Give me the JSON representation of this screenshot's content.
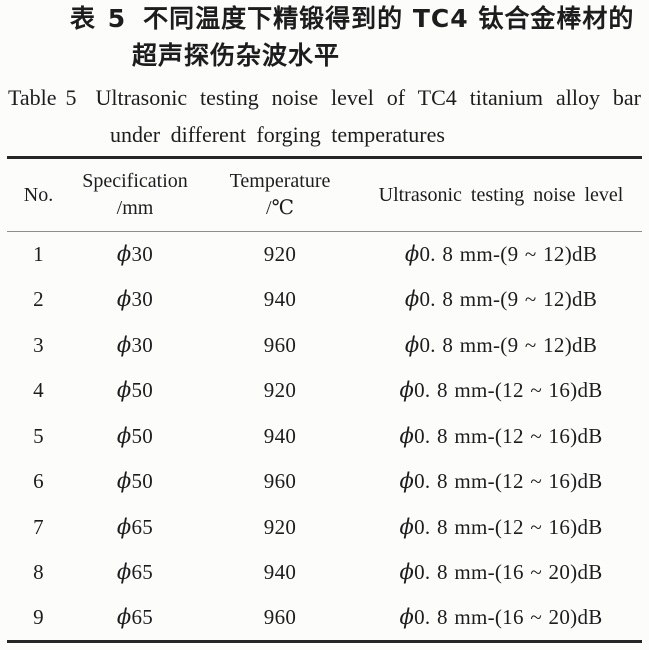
{
  "page": {
    "background": "#fcfcfb",
    "text_color": "#1d1d1d",
    "rule_color": "#262626",
    "header_rule_color": "#8e8e8e"
  },
  "caption": {
    "zh_label": "表 5",
    "zh_title_line1": "不同温度下精锻得到的 TC4 钛合金棒材的",
    "zh_title_line2": "超声探伤杂波水平",
    "en_label": "Table 5",
    "en_title_line1": "Ultrasonic testing noise level of TC4 titanium alloy bar",
    "en_title_line2": "under different forging temperatures"
  },
  "table": {
    "header": {
      "col_no": "No.",
      "col_spec_line1": "Specification",
      "col_spec_line2": "/mm",
      "col_temp_line1": "Temperature",
      "col_temp_line2": "/℃",
      "col_noise": "Ultrasonic testing noise level"
    },
    "rows": [
      {
        "no": "1",
        "specification": "ϕ30",
        "temperature": "920",
        "noise_level": "ϕ0. 8 mm-(9 ~ 12)dB"
      },
      {
        "no": "2",
        "specification": "ϕ30",
        "temperature": "940",
        "noise_level": "ϕ0. 8 mm-(9 ~ 12)dB"
      },
      {
        "no": "3",
        "specification": "ϕ30",
        "temperature": "960",
        "noise_level": "ϕ0. 8 mm-(9 ~ 12)dB"
      },
      {
        "no": "4",
        "specification": "ϕ50",
        "temperature": "920",
        "noise_level": "ϕ0. 8 mm-(12 ~ 16)dB"
      },
      {
        "no": "5",
        "specification": "ϕ50",
        "temperature": "940",
        "noise_level": "ϕ0. 8 mm-(12 ~ 16)dB"
      },
      {
        "no": "6",
        "specification": "ϕ50",
        "temperature": "960",
        "noise_level": "ϕ0. 8 mm-(12 ~ 16)dB"
      },
      {
        "no": "7",
        "specification": "ϕ65",
        "temperature": "920",
        "noise_level": "ϕ0. 8 mm-(12 ~ 16)dB"
      },
      {
        "no": "8",
        "specification": "ϕ65",
        "temperature": "940",
        "noise_level": "ϕ0. 8 mm-(16 ~ 20)dB"
      },
      {
        "no": "9",
        "specification": "ϕ65",
        "temperature": "960",
        "noise_level": "ϕ0. 8 mm-(16 ~ 20)dB"
      }
    ]
  }
}
